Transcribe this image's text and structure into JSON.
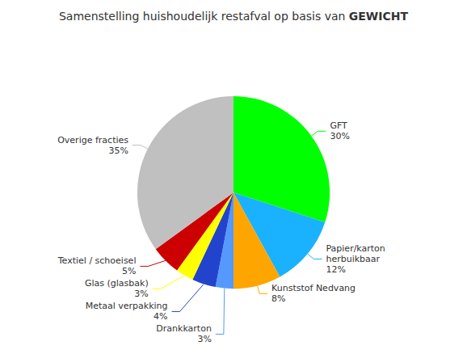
{
  "chart_data": {
    "type": "pie",
    "title": "Samenstelling huishoudelijk restafval op basis van GEWICHT",
    "categories": [
      "GFT",
      "Papier/karton\nherbuikbaar",
      "Kunststof Nedvang",
      "Drankkarton",
      "Metaal verpakking",
      "Glas (glasbak)",
      "Textiel / schoeisel",
      "Overige fracties"
    ],
    "values": [
      30,
      12,
      8,
      3,
      4,
      3,
      5,
      35
    ],
    "value_labels": [
      "30%",
      "12%",
      "8%",
      "3%",
      "4%",
      "3%",
      "5%",
      "35%"
    ],
    "colors": [
      "#00FF00",
      "#1AB2FF",
      "#FFA500",
      "#5599FF",
      "#2244CC",
      "#FFFF00",
      "#CC0000",
      "#C0C0C0"
    ]
  }
}
